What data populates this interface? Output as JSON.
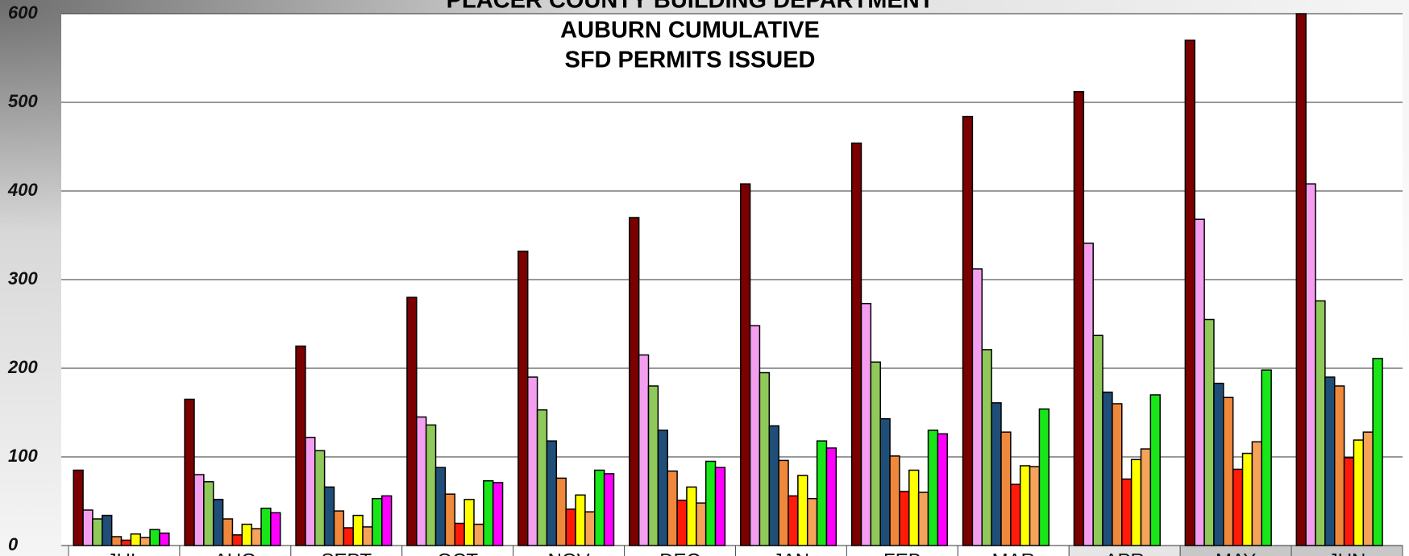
{
  "chart_data": {
    "type": "bar",
    "title": [
      "PLACER COUNTY BUILDING DEPARTMENT",
      "AUBURN CUMULATIVE",
      "SFD PERMITS ISSUED"
    ],
    "categories": [
      "JUL",
      "AUG",
      "SEPT",
      "OCT",
      "NOV",
      "DEC",
      "JAN",
      "FEB",
      "MAR",
      "APR",
      "MAY",
      "JUN"
    ],
    "series": [
      {
        "color": "#7b0000",
        "values": [
          85,
          165,
          225,
          280,
          332,
          370,
          408,
          454,
          484,
          512,
          570,
          600
        ]
      },
      {
        "color": "#f49ef0",
        "values": [
          40,
          80,
          122,
          145,
          190,
          215,
          248,
          273,
          312,
          341,
          368,
          408
        ]
      },
      {
        "color": "#8fc95a",
        "values": [
          30,
          72,
          107,
          136,
          153,
          180,
          195,
          207,
          221,
          237,
          255,
          276
        ]
      },
      {
        "color": "#1f4e79",
        "values": [
          34,
          52,
          66,
          88,
          118,
          130,
          135,
          143,
          161,
          173,
          183,
          190
        ]
      },
      {
        "color": "#f0883c",
        "values": [
          10,
          30,
          39,
          58,
          76,
          84,
          96,
          101,
          128,
          160,
          167,
          180
        ]
      },
      {
        "color": "#ff1a0a",
        "values": [
          6,
          12,
          20,
          25,
          41,
          51,
          56,
          61,
          69,
          75,
          86,
          99
        ]
      },
      {
        "color": "#ffff00",
        "values": [
          13,
          24,
          34,
          52,
          57,
          66,
          79,
          85,
          90,
          97,
          104,
          119
        ]
      },
      {
        "color": "#f5a25a",
        "values": [
          9,
          19,
          21,
          24,
          38,
          48,
          53,
          60,
          89,
          109,
          117,
          128
        ]
      },
      {
        "color": "#19e619",
        "values": [
          18,
          42,
          53,
          73,
          85,
          95,
          118,
          130,
          154,
          170,
          198,
          211
        ]
      },
      {
        "color": "#ff00ff",
        "values": [
          14,
          37,
          56,
          71,
          81,
          88,
          110,
          126,
          null,
          null,
          null,
          null
        ]
      }
    ],
    "ylim": [
      0,
      600
    ],
    "yticks": [
      0,
      100,
      200,
      300,
      400,
      500,
      600
    ],
    "grid": true
  }
}
